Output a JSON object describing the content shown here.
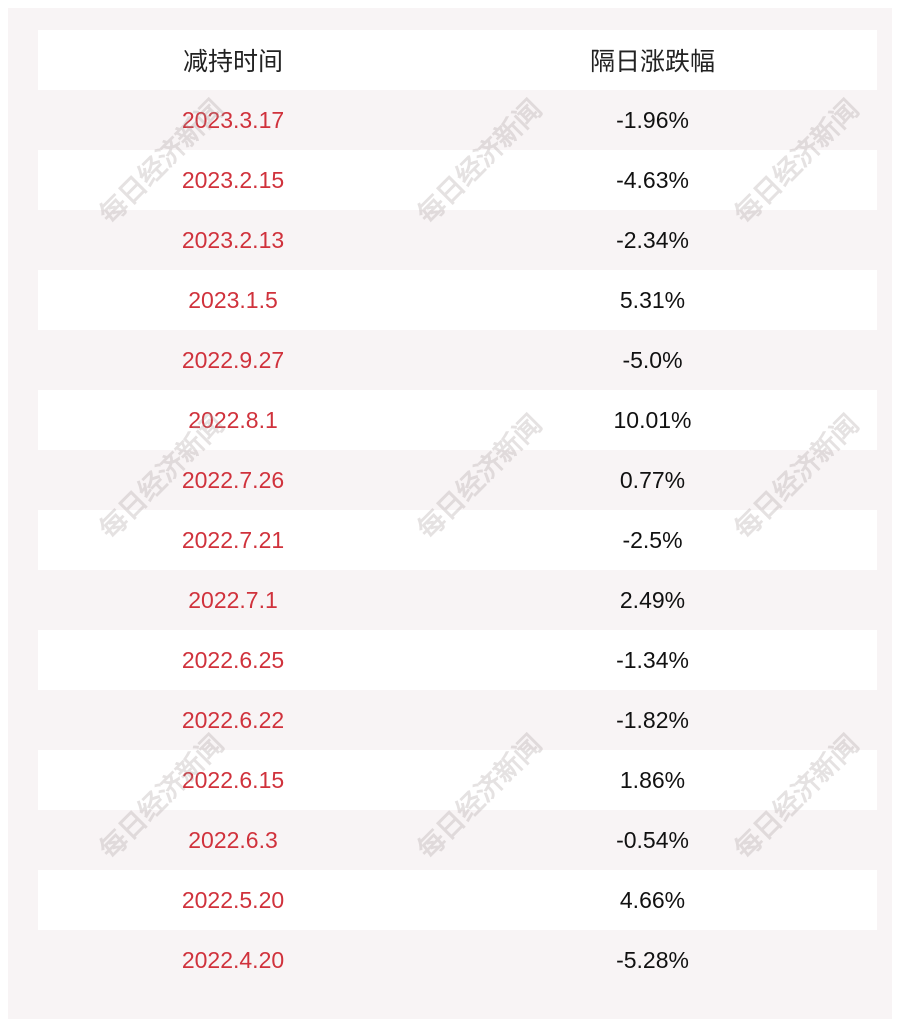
{
  "table": {
    "header": [
      "减持时间",
      "隔日涨跌幅"
    ],
    "rows": [
      [
        "2023.3.17",
        "-1.96%"
      ],
      [
        "2023.2.15",
        "-4.63%"
      ],
      [
        "2023.2.13",
        "-2.34%"
      ],
      [
        "2023.1.5",
        "5.31%"
      ],
      [
        "2022.9.27",
        "-5.0%"
      ],
      [
        "2022.8.1",
        "10.01%"
      ],
      [
        "2022.7.26",
        "0.77%"
      ],
      [
        "2022.7.21",
        "-2.5%"
      ],
      [
        "2022.7.1",
        "2.49%"
      ],
      [
        "2022.6.25",
        "-1.34%"
      ],
      [
        "2022.6.22",
        "-1.82%"
      ],
      [
        "2022.6.15",
        "1.86%"
      ],
      [
        "2022.6.3",
        "-0.54%"
      ],
      [
        "2022.5.20",
        "4.66%"
      ],
      [
        "2022.4.20",
        "-5.28%"
      ]
    ]
  },
  "watermark": "每日经济新闻"
}
